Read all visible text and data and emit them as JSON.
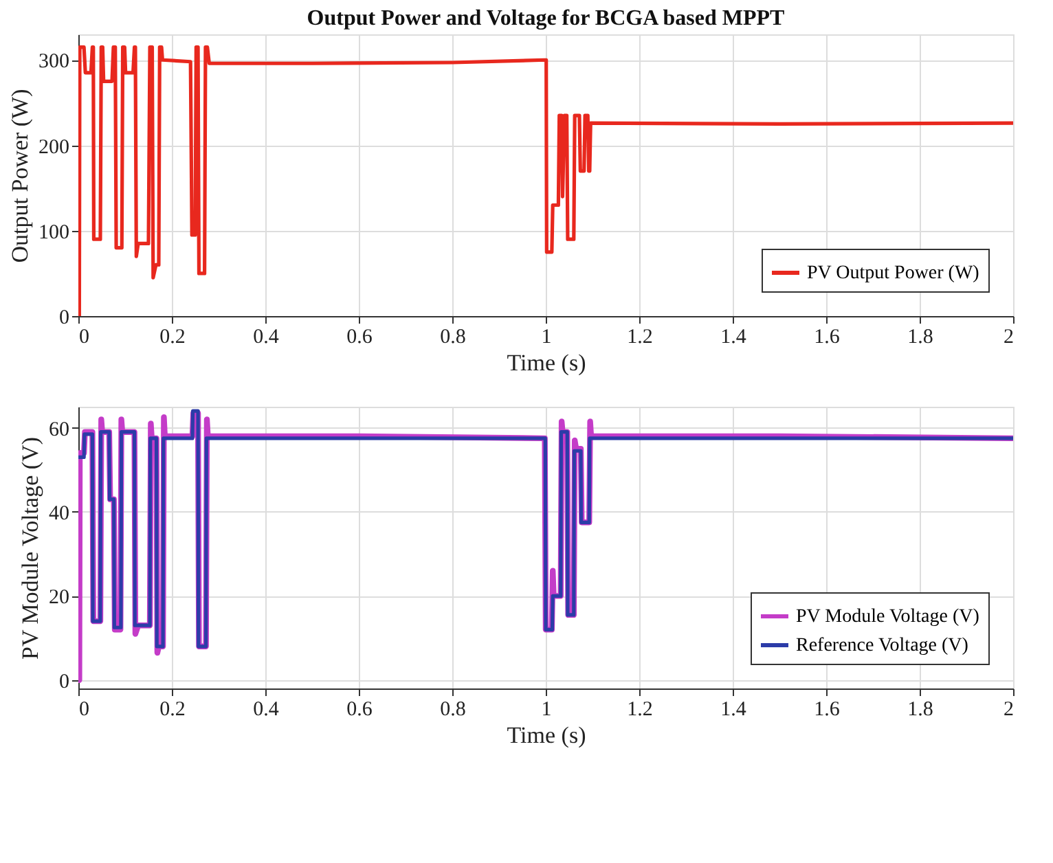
{
  "chart_data": [
    {
      "type": "line",
      "title": "Output Power and Voltage for BCGA based MPPT",
      "xlabel": "Time (s)",
      "ylabel": "Output Power (W)",
      "xlim": [
        0,
        2
      ],
      "xticks": [
        0,
        0.2,
        0.4,
        0.6,
        0.8,
        1,
        1.2,
        1.4,
        1.6,
        1.8,
        2
      ],
      "ylim": [
        0,
        330
      ],
      "yticks": [
        0,
        100,
        200,
        300
      ],
      "grid": true,
      "legend": "bottom right",
      "series": [
        {
          "name": "PV Output Power (W)",
          "color": "#e8281e",
          "x": [
            0,
            0.002,
            0.003,
            0.012,
            0.015,
            0.027,
            0.03,
            0.032,
            0.033,
            0.047,
            0.049,
            0.052,
            0.054,
            0.072,
            0.075,
            0.079,
            0.081,
            0.093,
            0.095,
            0.099,
            0.101,
            0.117,
            0.12,
            0.122,
            0.124,
            0.128,
            0.15,
            0.153,
            0.158,
            0.16,
            0.166,
            0.172,
            0.174,
            0.178,
            0.18,
            0.24,
            0.243,
            0.25,
            0.252,
            0.256,
            0.258,
            0.27,
            0.272,
            0.276,
            0.28,
            0.5,
            0.8,
            0.998,
            1.001,
            1.002,
            1.013,
            1.015,
            1.027,
            1.029,
            1.034,
            1.036,
            1.04,
            1.045,
            1.047,
            1.06,
            1.062,
            1.072,
            1.074,
            1.082,
            1.084,
            1.09,
            1.092,
            1.094,
            1.096,
            1.5,
            2
          ],
          "values": [
            0,
            0,
            315,
            315,
            285,
            285,
            315,
            315,
            90,
            90,
            315,
            315,
            275,
            275,
            315,
            315,
            80,
            80,
            315,
            315,
            285,
            285,
            315,
            315,
            70,
            85,
            85,
            315,
            315,
            45,
            60,
            60,
            315,
            315,
            300,
            298,
            95,
            95,
            315,
            315,
            50,
            50,
            315,
            315,
            296,
            296,
            297,
            300,
            300,
            75,
            75,
            130,
            130,
            235,
            235,
            140,
            235,
            235,
            90,
            90,
            235,
            235,
            170,
            170,
            235,
            235,
            170,
            170,
            226,
            225,
            226
          ]
        }
      ]
    },
    {
      "type": "line",
      "xlabel": "Time (s)",
      "ylabel": "PV Module Voltage (V)",
      "xlim": [
        0,
        2
      ],
      "xticks": [
        0,
        0.2,
        0.4,
        0.6,
        0.8,
        1,
        1.2,
        1.4,
        1.6,
        1.8,
        2
      ],
      "ylim": [
        -2,
        65
      ],
      "yticks": [
        0,
        20,
        40,
        60
      ],
      "grid": true,
      "legend": "bottom right",
      "series": [
        {
          "name": "PV Module Voltage (V)",
          "color": "#c43cc8",
          "x": [
            0,
            0.002,
            0.003,
            0.012,
            0.014,
            0.03,
            0.032,
            0.047,
            0.049,
            0.051,
            0.066,
            0.068,
            0.076,
            0.078,
            0.09,
            0.092,
            0.094,
            0.12,
            0.122,
            0.128,
            0.153,
            0.155,
            0.157,
            0.167,
            0.169,
            0.172,
            0.181,
            0.183,
            0.185,
            0.244,
            0.246,
            0.256,
            0.258,
            0.273,
            0.275,
            0.277,
            0.6,
            0.998,
            1.0,
            1.013,
            1.015,
            1.017,
            1.032,
            1.034,
            1.036,
            1.046,
            1.048,
            1.06,
            1.062,
            1.065,
            1.075,
            1.077,
            1.093,
            1.095,
            1.097,
            1.5,
            2
          ],
          "values": [
            0,
            0,
            54,
            54,
            59,
            59,
            14,
            14,
            62,
            59,
            59,
            43,
            43,
            12,
            12,
            62,
            59,
            59,
            11,
            13,
            13,
            61,
            57.5,
            57.5,
            6.5,
            8,
            8,
            62.5,
            58,
            58,
            63.5,
            63.5,
            8,
            8,
            62,
            58,
            58,
            57.5,
            12,
            12,
            26,
            20,
            20,
            61.5,
            59,
            59,
            15.5,
            15.5,
            57,
            55,
            55,
            37.5,
            37.5,
            61.5,
            58,
            58,
            57.5
          ]
        },
        {
          "name": "Reference Voltage (V)",
          "color": "#2c3ca8",
          "x": [
            0,
            0.012,
            0.013,
            0.03,
            0.031,
            0.047,
            0.048,
            0.066,
            0.067,
            0.076,
            0.077,
            0.091,
            0.092,
            0.12,
            0.121,
            0.153,
            0.154,
            0.167,
            0.168,
            0.181,
            0.182,
            0.244,
            0.245,
            0.256,
            0.257,
            0.273,
            0.274,
            0.999,
            1.0,
            1.014,
            1.015,
            1.032,
            1.033,
            1.046,
            1.047,
            1.06,
            1.061,
            1.075,
            1.076,
            1.093,
            1.094,
            2
          ],
          "values": [
            53,
            53,
            58.5,
            58.5,
            14,
            14,
            59,
            59,
            43,
            43,
            12.5,
            12.5,
            59,
            59,
            13,
            13,
            57.5,
            57.5,
            8,
            8,
            57.5,
            57.5,
            64,
            64,
            8,
            8,
            57.5,
            57.5,
            12,
            12,
            20,
            20,
            59,
            59,
            15.5,
            15.5,
            54.5,
            54.5,
            37.5,
            37.5,
            57.5,
            57.5
          ]
        }
      ]
    }
  ]
}
